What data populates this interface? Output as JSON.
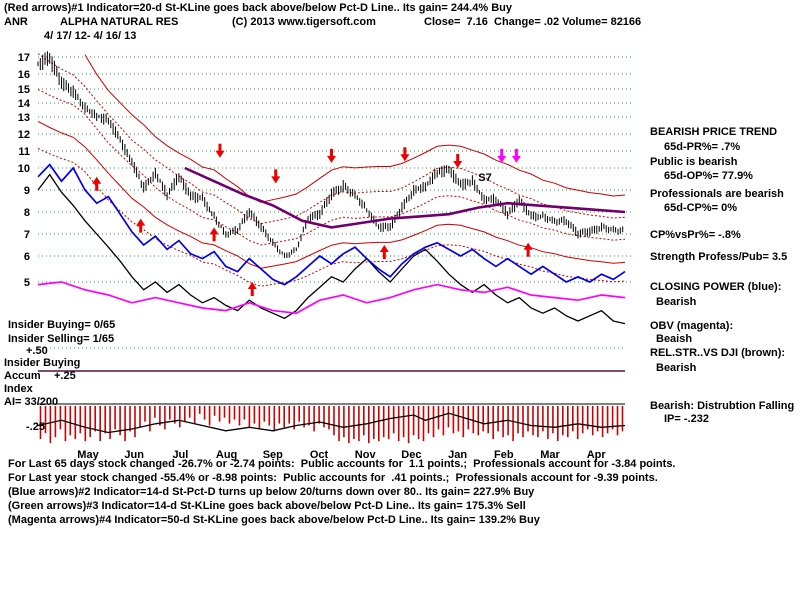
{
  "header": {
    "line1": "(Red arrows)#1 Indicator=20-d St-KLine goes back above/below Pct-D Line.. Its gain= 244.4% Buy",
    "symbol": "ANR",
    "name": "ALPHA NATURAL RES",
    "copyright": "(C) 2013 www.tigersoft.com",
    "quote": "Close=  7.16  Change= .02 Volume= 82166",
    "date_range": "4/ 17/ 12- 4/ 16/ 13"
  },
  "left_panel": {
    "insider_buying": "Insider Buying= 0/65",
    "insider_selling": "Insider Selling= 1/65",
    "scale_plus_50": "+.50",
    "accum_line1": "Insider Buying",
    "accum_line2": "Accum",
    "scale_plus_25": "+.25",
    "accum_line3": "Index",
    "ai_value": "AI= 33/200",
    "scale_minus_25": "-.25"
  },
  "right_panel": {
    "trend_header": "BEARISH PRICE TREND",
    "pr": "65d-PR%= .7%",
    "public_state": "Public is bearish",
    "op": "65d-OP%= 77.9%",
    "professionals_state": "Professionals are bearish",
    "cp": "65d-CP%= 0%",
    "cpvspr": "CP%vsPr%= -.8%",
    "strength": "Strength Profess/Pub= 3.5",
    "closing_power_header": "CLOSING POWER (blue):",
    "closing_power_state": "Bearish",
    "obv_header": "OBV (magenta):",
    "obv_state": "Beaish",
    "relstr_header": "REL.STR..VS DJI (brown):",
    "relstr_state": "Bearish",
    "distribution": "Bearish: Distrubtion Falling",
    "ip": "IP= -.232"
  },
  "footer": {
    "lines": [
      "For Last 65 days stock changed -26.7% or -2.74 points:  Public accounts for  1.1 points.;  Professionals account for -3.84 points.",
      "For Last year stock changed -55.4% or -8.98 points:  Public accounts for  .41 points.;  Professionals account for -9.39 points.",
      "(Blue arrows)#2 Indicator=14-d St-Pct-D turns up below 20/turns down over 80.. Its gain= 227.9% Buy",
      "(Green arrows)#3 Indicator=14-d St-KLine goes back above/below Pct-D Line.. Its gain= 175.3% Sell",
      "(Magenta arrows)#4 Indicator=50-d St-KLine goes back above/below Pct-D Line.. Its gain= 139.2% Buy"
    ]
  },
  "chart_data": {
    "type": "line",
    "title": "ANR ALPHA NATURAL RES 4/17/12 - 4/16/13",
    "ylabel": "",
    "xlabel": "",
    "grid": true,
    "y_ticks": [
      17,
      16,
      15,
      14,
      13,
      12,
      11,
      10,
      9,
      8,
      7,
      6,
      5
    ],
    "x_labels": [
      "May",
      "Jun",
      "Jul",
      "Aug",
      "Sep",
      "Oct",
      "Nov",
      "Dec",
      "Jan",
      "Feb",
      "Mar",
      "Apr"
    ],
    "colors": {
      "price": "#000000",
      "bands": "#cc0000",
      "ma65": "#70006e",
      "closing_power": "#0000ee",
      "obv": "#ff00ff",
      "rel_strength": "#000000",
      "grid": "#2e9e4f",
      "volume_bars": "#cc0000",
      "accum_zero_line": "#50104e"
    },
    "series": [
      {
        "name": "price_close",
        "color": "#000000",
        "points": [
          [
            0,
            16.6
          ],
          [
            0.02,
            16.9
          ],
          [
            0.04,
            15.4
          ],
          [
            0.06,
            14.8
          ],
          [
            0.08,
            13.7
          ],
          [
            0.1,
            13.1
          ],
          [
            0.12,
            12.8
          ],
          [
            0.14,
            11.6
          ],
          [
            0.16,
            10.3
          ],
          [
            0.18,
            9.1
          ],
          [
            0.2,
            9.8
          ],
          [
            0.22,
            8.8
          ],
          [
            0.24,
            9.6
          ],
          [
            0.26,
            8.7
          ],
          [
            0.28,
            8.6
          ],
          [
            0.3,
            7.8
          ],
          [
            0.32,
            7.0
          ],
          [
            0.34,
            7.2
          ],
          [
            0.36,
            8.0
          ],
          [
            0.38,
            7.3
          ],
          [
            0.4,
            6.6
          ],
          [
            0.42,
            6.0
          ],
          [
            0.44,
            6.3
          ],
          [
            0.46,
            7.7
          ],
          [
            0.48,
            7.9
          ],
          [
            0.5,
            8.8
          ],
          [
            0.52,
            9.2
          ],
          [
            0.54,
            8.8
          ],
          [
            0.56,
            8.1
          ],
          [
            0.58,
            7.3
          ],
          [
            0.6,
            7.3
          ],
          [
            0.62,
            8.2
          ],
          [
            0.64,
            9.0
          ],
          [
            0.66,
            9.2
          ],
          [
            0.68,
            9.8
          ],
          [
            0.7,
            9.9
          ],
          [
            0.72,
            9.2
          ],
          [
            0.74,
            9.4
          ],
          [
            0.76,
            8.6
          ],
          [
            0.78,
            8.6
          ],
          [
            0.8,
            7.9
          ],
          [
            0.82,
            8.5
          ],
          [
            0.84,
            7.8
          ],
          [
            0.86,
            7.8
          ],
          [
            0.88,
            7.6
          ],
          [
            0.9,
            7.6
          ],
          [
            0.92,
            7.0
          ],
          [
            0.94,
            7.1
          ],
          [
            0.96,
            7.3
          ],
          [
            0.98,
            7.2
          ],
          [
            1,
            7.16
          ]
        ]
      },
      {
        "name": "closing_power",
        "color": "#0000ee",
        "points": [
          [
            0,
            9.6
          ],
          [
            0.02,
            10.2
          ],
          [
            0.04,
            9.4
          ],
          [
            0.06,
            10.0
          ],
          [
            0.08,
            9.0
          ],
          [
            0.1,
            8.4
          ],
          [
            0.12,
            8.7
          ],
          [
            0.14,
            7.9
          ],
          [
            0.16,
            7.1
          ],
          [
            0.18,
            6.5
          ],
          [
            0.2,
            6.9
          ],
          [
            0.22,
            6.3
          ],
          [
            0.24,
            6.7
          ],
          [
            0.26,
            6.1
          ],
          [
            0.28,
            5.9
          ],
          [
            0.3,
            6.2
          ],
          [
            0.32,
            5.6
          ],
          [
            0.34,
            5.4
          ],
          [
            0.36,
            5.9
          ],
          [
            0.38,
            5.5
          ],
          [
            0.4,
            5.1
          ],
          [
            0.42,
            4.9
          ],
          [
            0.44,
            5.2
          ],
          [
            0.46,
            5.6
          ],
          [
            0.48,
            6.0
          ],
          [
            0.5,
            5.7
          ],
          [
            0.52,
            6.1
          ],
          [
            0.54,
            6.4
          ],
          [
            0.56,
            5.9
          ],
          [
            0.58,
            5.5
          ],
          [
            0.6,
            5.2
          ],
          [
            0.62,
            5.7
          ],
          [
            0.64,
            6.1
          ],
          [
            0.66,
            6.4
          ],
          [
            0.68,
            6.6
          ],
          [
            0.7,
            6.3
          ],
          [
            0.72,
            6.0
          ],
          [
            0.74,
            6.3
          ],
          [
            0.76,
            5.9
          ],
          [
            0.78,
            5.6
          ],
          [
            0.8,
            5.9
          ],
          [
            0.82,
            5.6
          ],
          [
            0.84,
            5.3
          ],
          [
            0.86,
            5.6
          ],
          [
            0.88,
            5.3
          ],
          [
            0.9,
            5.0
          ],
          [
            0.92,
            5.2
          ],
          [
            0.94,
            5.0
          ],
          [
            0.96,
            5.3
          ],
          [
            0.98,
            5.1
          ],
          [
            1,
            5.4
          ]
        ]
      },
      {
        "name": "obv",
        "color": "#ff00ff",
        "points": [
          [
            0,
            4.9
          ],
          [
            0.04,
            5.0
          ],
          [
            0.08,
            4.7
          ],
          [
            0.12,
            4.5
          ],
          [
            0.16,
            4.2
          ],
          [
            0.2,
            4.4
          ],
          [
            0.24,
            4.2
          ],
          [
            0.28,
            4.0
          ],
          [
            0.32,
            3.9
          ],
          [
            0.36,
            4.2
          ],
          [
            0.4,
            3.9
          ],
          [
            0.44,
            3.8
          ],
          [
            0.48,
            4.3
          ],
          [
            0.52,
            4.5
          ],
          [
            0.56,
            4.2
          ],
          [
            0.6,
            4.4
          ],
          [
            0.64,
            4.7
          ],
          [
            0.68,
            4.9
          ],
          [
            0.72,
            4.7
          ],
          [
            0.76,
            4.6
          ],
          [
            0.8,
            4.8
          ],
          [
            0.84,
            4.5
          ],
          [
            0.88,
            4.4
          ],
          [
            0.92,
            4.3
          ],
          [
            0.96,
            4.5
          ],
          [
            1,
            4.4
          ]
        ]
      },
      {
        "name": "rel_strength",
        "color": "#000000",
        "points": [
          [
            0,
            9.0
          ],
          [
            0.02,
            9.7
          ],
          [
            0.04,
            8.9
          ],
          [
            0.06,
            8.3
          ],
          [
            0.08,
            7.6
          ],
          [
            0.1,
            7.0
          ],
          [
            0.12,
            6.4
          ],
          [
            0.14,
            5.8
          ],
          [
            0.16,
            5.2
          ],
          [
            0.18,
            4.7
          ],
          [
            0.2,
            5.0
          ],
          [
            0.22,
            4.6
          ],
          [
            0.24,
            4.9
          ],
          [
            0.26,
            4.5
          ],
          [
            0.28,
            4.2
          ],
          [
            0.3,
            4.4
          ],
          [
            0.32,
            4.1
          ],
          [
            0.34,
            3.9
          ],
          [
            0.36,
            4.3
          ],
          [
            0.38,
            4.0
          ],
          [
            0.4,
            3.8
          ],
          [
            0.42,
            3.6
          ],
          [
            0.44,
            3.9
          ],
          [
            0.46,
            4.4
          ],
          [
            0.48,
            4.8
          ],
          [
            0.5,
            5.2
          ],
          [
            0.52,
            5.0
          ],
          [
            0.54,
            5.5
          ],
          [
            0.56,
            5.9
          ],
          [
            0.58,
            5.4
          ],
          [
            0.6,
            5.0
          ],
          [
            0.62,
            5.5
          ],
          [
            0.64,
            6.0
          ],
          [
            0.66,
            6.3
          ],
          [
            0.68,
            5.8
          ],
          [
            0.7,
            5.3
          ],
          [
            0.72,
            4.9
          ],
          [
            0.74,
            4.6
          ],
          [
            0.76,
            4.9
          ],
          [
            0.78,
            4.5
          ],
          [
            0.8,
            4.2
          ],
          [
            0.82,
            4.4
          ],
          [
            0.84,
            4.0
          ],
          [
            0.86,
            3.8
          ],
          [
            0.88,
            4.0
          ],
          [
            0.9,
            3.7
          ],
          [
            0.92,
            3.5
          ],
          [
            0.94,
            3.7
          ],
          [
            0.96,
            3.9
          ],
          [
            0.98,
            3.5
          ],
          [
            1,
            3.4
          ]
        ]
      },
      {
        "name": "ma65",
        "color": "#70006e",
        "points": [
          [
            0.25,
            10.0
          ],
          [
            0.3,
            9.4
          ],
          [
            0.35,
            8.8
          ],
          [
            0.4,
            8.3
          ],
          [
            0.45,
            7.6
          ],
          [
            0.5,
            7.3
          ],
          [
            0.55,
            7.5
          ],
          [
            0.6,
            7.7
          ],
          [
            0.65,
            7.8
          ],
          [
            0.7,
            7.9
          ],
          [
            0.75,
            8.2
          ],
          [
            0.8,
            8.4
          ],
          [
            0.85,
            8.3
          ],
          [
            0.9,
            8.2
          ],
          [
            0.95,
            8.1
          ],
          [
            1,
            8.0
          ]
        ]
      }
    ],
    "bands": {
      "color": "#cc0000",
      "multipliers": [
        1.22,
        1.08,
        0.94,
        0.8,
        0.7
      ],
      "styles": [
        "solid",
        "dotted",
        "dotted",
        "solid",
        "dotted"
      ]
    },
    "signals": {
      "red_up": [
        [
          0.1,
          9.6
        ],
        [
          0.175,
          7.7
        ],
        [
          0.3,
          7.3
        ],
        [
          0.365,
          5.0
        ],
        [
          0.59,
          6.5
        ],
        [
          0.835,
          6.6
        ]
      ],
      "red_down": [
        [
          0.31,
          10.6
        ],
        [
          0.405,
          9.3
        ],
        [
          0.5,
          10.3
        ],
        [
          0.625,
          10.4
        ],
        [
          0.715,
          10.0
        ]
      ],
      "magenta_down": [
        [
          0.79,
          10.3
        ],
        [
          0.815,
          10.3
        ]
      ],
      "s7_label": {
        "t": 0.75,
        "p": 9.4,
        "text": "S7"
      }
    },
    "accum_scale": {
      "plus50": "+.50",
      "plus25": "+.25",
      "minus25": "-.25",
      "ai": "AI= 33/200"
    },
    "volume_panel": {
      "bars": [
        0.85,
        0.7,
        0.95,
        0.8,
        0.6,
        0.9,
        0.75,
        0.85,
        0.7,
        0.9,
        0.8,
        0.65,
        0.9,
        0.7,
        0.85,
        0.6,
        0.75,
        0.9,
        0.65,
        0.8,
        0.55,
        0.4,
        0.65,
        0.3,
        0.5,
        0.6,
        0.35,
        0.45,
        0.55,
        0.4,
        0.3,
        0.45,
        0.2,
        0.35,
        0.5,
        0.25,
        0.4,
        0.3,
        0.45,
        0.35,
        0.5,
        0.35,
        0.55,
        0.45,
        0.6,
        0.4,
        0.5,
        0.65,
        0.45,
        0.55,
        0.45,
        0.6,
        0.4,
        0.55,
        0.5,
        0.65,
        0.45,
        0.55,
        0.6,
        0.75,
        0.9,
        0.8,
        0.95,
        0.85,
        0.9,
        0.75,
        0.95,
        0.85,
        0.9,
        0.8,
        0.85,
        0.7,
        0.9,
        0.8,
        0.95,
        0.75,
        0.85,
        0.9,
        0.7,
        0.8,
        0.6,
        0.75,
        0.55,
        0.7,
        0.65,
        0.8,
        0.6,
        0.7,
        0.75,
        0.65,
        0.7,
        0.85,
        0.65,
        0.8,
        0.75,
        0.9,
        0.7,
        0.8,
        0.65,
        0.75,
        0.8,
        0.65,
        0.85,
        0.7,
        0.9,
        0.75,
        0.8,
        0.65,
        0.85,
        0.7,
        0.6,
        0.75,
        0.65,
        0.8,
        0.7,
        0.6,
        0.75,
        0.65
      ],
      "ai_line": [
        [
          0,
          0.5
        ],
        [
          0.04,
          0.35
        ],
        [
          0.08,
          0.55
        ],
        [
          0.12,
          0.7
        ],
        [
          0.16,
          0.6
        ],
        [
          0.2,
          0.45
        ],
        [
          0.24,
          0.35
        ],
        [
          0.28,
          0.5
        ],
        [
          0.32,
          0.65
        ],
        [
          0.36,
          0.55
        ],
        [
          0.4,
          0.65
        ],
        [
          0.44,
          0.5
        ],
        [
          0.48,
          0.4
        ],
        [
          0.52,
          0.55
        ],
        [
          0.56,
          0.45
        ],
        [
          0.6,
          0.3
        ],
        [
          0.64,
          0.2
        ],
        [
          0.66,
          0.35
        ],
        [
          0.7,
          0.15
        ],
        [
          0.73,
          0.3
        ],
        [
          0.76,
          0.45
        ],
        [
          0.8,
          0.35
        ],
        [
          0.84,
          0.5
        ],
        [
          0.88,
          0.55
        ],
        [
          0.92,
          0.45
        ],
        [
          0.96,
          0.55
        ],
        [
          1,
          0.5
        ]
      ]
    }
  }
}
